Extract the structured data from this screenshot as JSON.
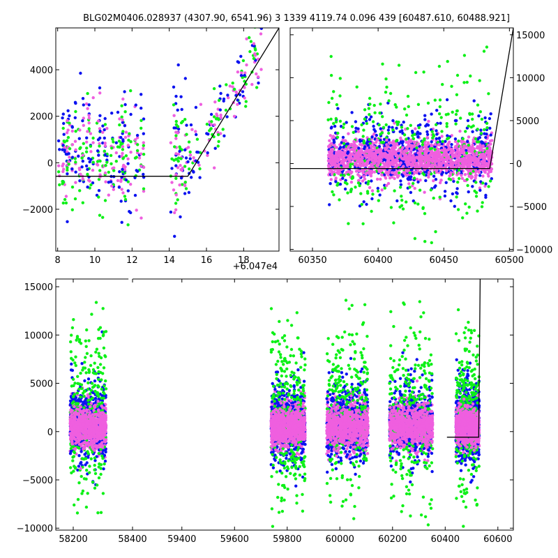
{
  "title": "BLG02M0406.028937 (4307.90, 6541.96)   3 1339 4119.74 0.096 439 [60487.610, 60488.921]",
  "colors": {
    "blue": "#0a12f0",
    "green": "#0ef018",
    "pink": "#ef5fdf",
    "line": "#000000"
  },
  "chart_data": [
    {
      "id": "top-left",
      "type": "scatter",
      "offset_label": "+6.047e4",
      "xlim": [
        7.9,
        19.9
      ],
      "ylim": [
        -3800,
        5800
      ],
      "xticks": [
        8,
        10,
        12,
        14,
        16,
        18
      ],
      "yticks": [
        -2000,
        0,
        2000,
        4000
      ],
      "ytick_labels": [
        "−2000",
        "0",
        "2000",
        "4000"
      ],
      "model_line": [
        [
          7.9,
          -580
        ],
        [
          15.0,
          -580
        ],
        [
          19.9,
          5800
        ]
      ]
    },
    {
      "id": "top-right",
      "type": "scatter",
      "xlim": [
        60333,
        60503
      ],
      "ylim": [
        -10200,
        15800
      ],
      "xticks": [
        60350,
        60400,
        60450,
        60500
      ],
      "yticks": [
        -10000,
        -5000,
        0,
        5000,
        10000,
        15000
      ],
      "ytick_labels": [
        "−10000",
        "−5000",
        "0",
        "5000",
        "10000",
        "15000"
      ],
      "yaxis_side": "right",
      "model_line": [
        [
          60333,
          -580
        ],
        [
          60485,
          -580
        ],
        [
          60503,
          15800
        ]
      ]
    },
    {
      "id": "bottom",
      "type": "scatter",
      "xlim": [
        58130,
        60680
      ],
      "ylim": [
        -10200,
        15800
      ],
      "xticks": [
        58200,
        58400,
        59400,
        59600,
        59800,
        60000,
        60200,
        60400,
        60600
      ],
      "yticks": [
        -10000,
        -5000,
        0,
        5000,
        10000,
        15000
      ],
      "ytick_labels": [
        "−10000",
        "−5000",
        "0",
        "5000",
        "10000",
        "15000"
      ],
      "axis_break_after": 58430,
      "seasons": [
        {
          "start": 58210,
          "end": 58410
        },
        {
          "start": 59330,
          "end": 59520
        },
        {
          "start": 59640,
          "end": 59870
        },
        {
          "start": 59990,
          "end": 60230
        },
        {
          "start": 60360,
          "end": 60490
        }
      ],
      "model_line": [
        [
          60310,
          -580
        ],
        [
          60487,
          -580
        ],
        [
          60495,
          15800
        ]
      ]
    }
  ]
}
